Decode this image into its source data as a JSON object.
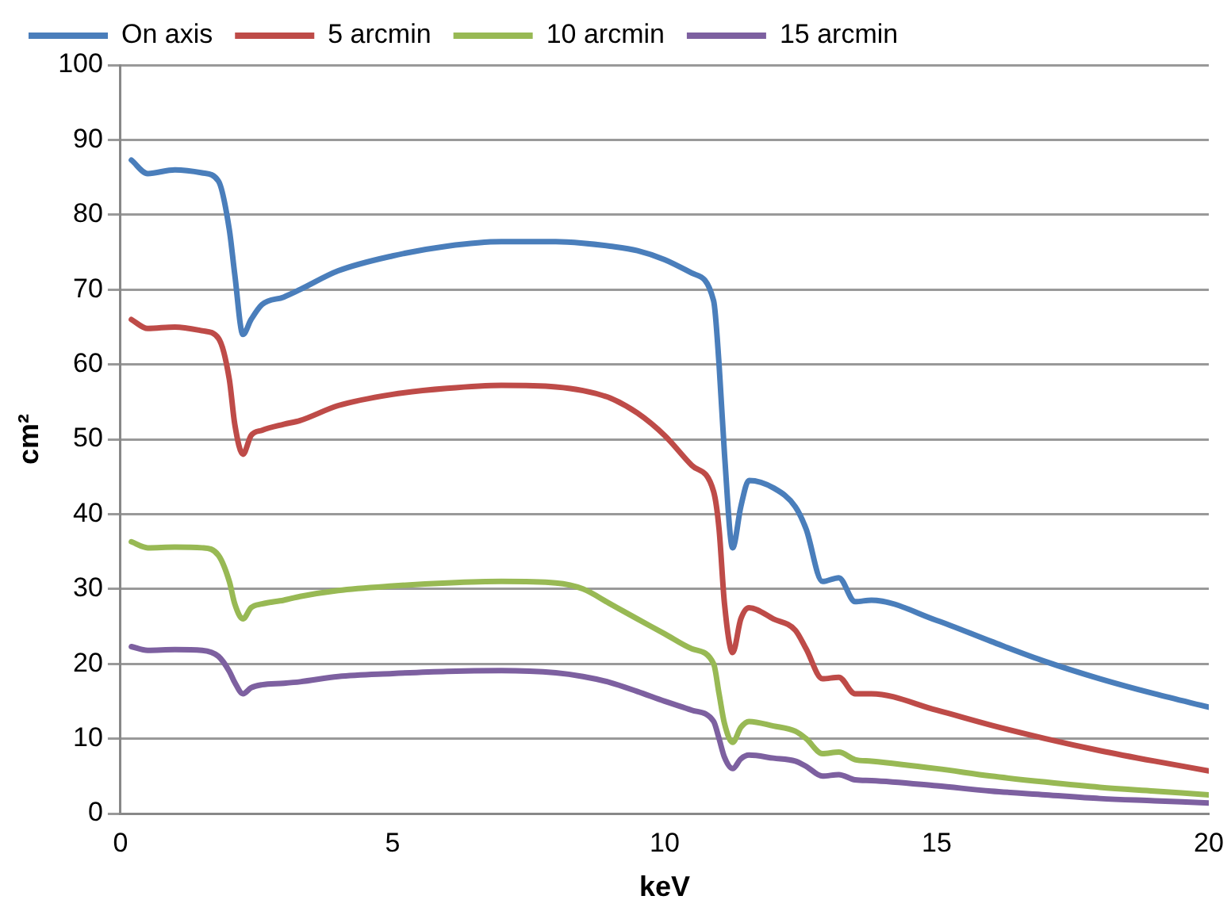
{
  "chart_data": {
    "type": "line",
    "xlabel": "keV",
    "ylabel": "cm²",
    "legend": "top",
    "grid": "y",
    "marker": "none",
    "line_style": "solid",
    "xlim": [
      0,
      20
    ],
    "xticks": [
      0,
      5,
      10,
      15,
      20
    ],
    "ylim": [
      0,
      100
    ],
    "yticks": [
      0,
      10,
      20,
      30,
      40,
      50,
      60,
      70,
      80,
      90,
      100
    ],
    "x": [
      0.2,
      0.5,
      1,
      1.5,
      1.8,
      2,
      2.1,
      2.25,
      2.4,
      2.6,
      3,
      3.3,
      4,
      5,
      6,
      7,
      8,
      8.5,
      9,
      9.5,
      10,
      10.5,
      10.9,
      11,
      11.1,
      11.25,
      11.4,
      11.55,
      12,
      12.4,
      12.6,
      12.9,
      13.2,
      13.5,
      13.8,
      15,
      16,
      17,
      18,
      19,
      20
    ],
    "series": [
      {
        "name": "On axis",
        "color": "#4a7ebb",
        "values": [
          87.3,
          85.5,
          86,
          85.6,
          84.5,
          78,
          72,
          64,
          66,
          68,
          69,
          70,
          72.5,
          74.5,
          75.8,
          76.4,
          76.4,
          76.2,
          75.8,
          75.2,
          74,
          72.2,
          68.5,
          60,
          48,
          35.5,
          41,
          44.5,
          43.5,
          41,
          38,
          31,
          31.5,
          28.3,
          28.5,
          25.8,
          23,
          20.3,
          18,
          16,
          14.2
        ]
      },
      {
        "name": "5 arcmin",
        "color": "#be4b48",
        "values": [
          66,
          64.8,
          65,
          64.5,
          63.5,
          58,
          52,
          48,
          50.5,
          51.2,
          52,
          52.5,
          54.5,
          56,
          56.8,
          57.2,
          57,
          56.5,
          55.5,
          53.5,
          50.5,
          46.5,
          43,
          38,
          28,
          21.5,
          26,
          27.5,
          26,
          24.5,
          22,
          18,
          18.2,
          16,
          16,
          13.8,
          11.8,
          10,
          8.4,
          7,
          5.7
        ]
      },
      {
        "name": "10 arcmin",
        "color": "#98b954",
        "values": [
          36.3,
          35.5,
          35.6,
          35.5,
          34.5,
          31,
          28,
          26,
          27.5,
          28,
          28.5,
          29,
          29.8,
          30.4,
          30.8,
          31,
          30.8,
          30,
          28,
          26,
          24,
          22,
          20,
          16,
          12,
          9.5,
          11.5,
          12.3,
          11.7,
          11,
          10,
          8,
          8.2,
          7.2,
          7,
          6,
          5,
          4.2,
          3.5,
          3,
          2.5
        ]
      },
      {
        "name": "15 arcmin",
        "color": "#7d60a0",
        "values": [
          22.3,
          21.8,
          21.9,
          21.8,
          21,
          19,
          17.5,
          16,
          16.8,
          17.2,
          17.4,
          17.6,
          18.3,
          18.7,
          19,
          19.1,
          18.8,
          18.3,
          17.5,
          16.3,
          15,
          13.8,
          12.3,
          10,
          7.5,
          6,
          7.3,
          7.8,
          7.4,
          7,
          6.3,
          5,
          5.2,
          4.5,
          4.4,
          3.7,
          3,
          2.5,
          2,
          1.7,
          1.4
        ]
      }
    ]
  }
}
